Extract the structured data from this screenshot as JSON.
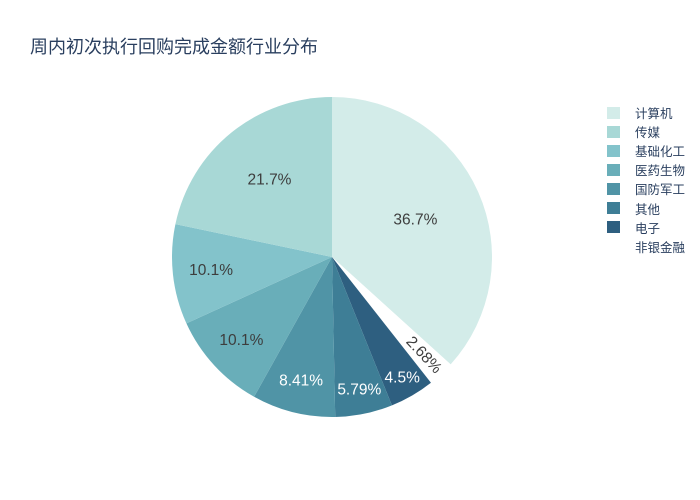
{
  "chart_data": {
    "type": "pie",
    "title": "周内初次执行回购完成金额行业分布",
    "legend_position": "right",
    "background": "#ffffff",
    "title_color": "#2a3f5f",
    "inside_label_dark_color": "#3d3d3d",
    "inside_label_light_color": "#ffffff",
    "slices": [
      {
        "label": "计算机",
        "percent": 36.7,
        "percent_label": "36.7%",
        "color": "#d3ece9"
      },
      {
        "label": "传媒",
        "percent": 21.7,
        "percent_label": "21.7%",
        "color": "#a8d8d6"
      },
      {
        "label": "基础化工",
        "percent": 10.1,
        "percent_label": "10.1%",
        "color": "#83c3cb"
      },
      {
        "label": "医药生物",
        "percent": 10.1,
        "percent_label": "10.1%",
        "color": "#69aeb9"
      },
      {
        "label": "国防军工",
        "percent": 8.41,
        "percent_label": "8.41%",
        "color": "#5094a6"
      },
      {
        "label": "其他",
        "percent": 5.79,
        "percent_label": "5.79%",
        "color": "#3e7e96"
      },
      {
        "label": "电子",
        "percent": 4.5,
        "percent_label": "4.5%",
        "color": "#2e5f80"
      },
      {
        "label": "非银金融",
        "percent": 2.68,
        "percent_label": "2.68%",
        "color": "#ffffff"
      }
    ]
  }
}
